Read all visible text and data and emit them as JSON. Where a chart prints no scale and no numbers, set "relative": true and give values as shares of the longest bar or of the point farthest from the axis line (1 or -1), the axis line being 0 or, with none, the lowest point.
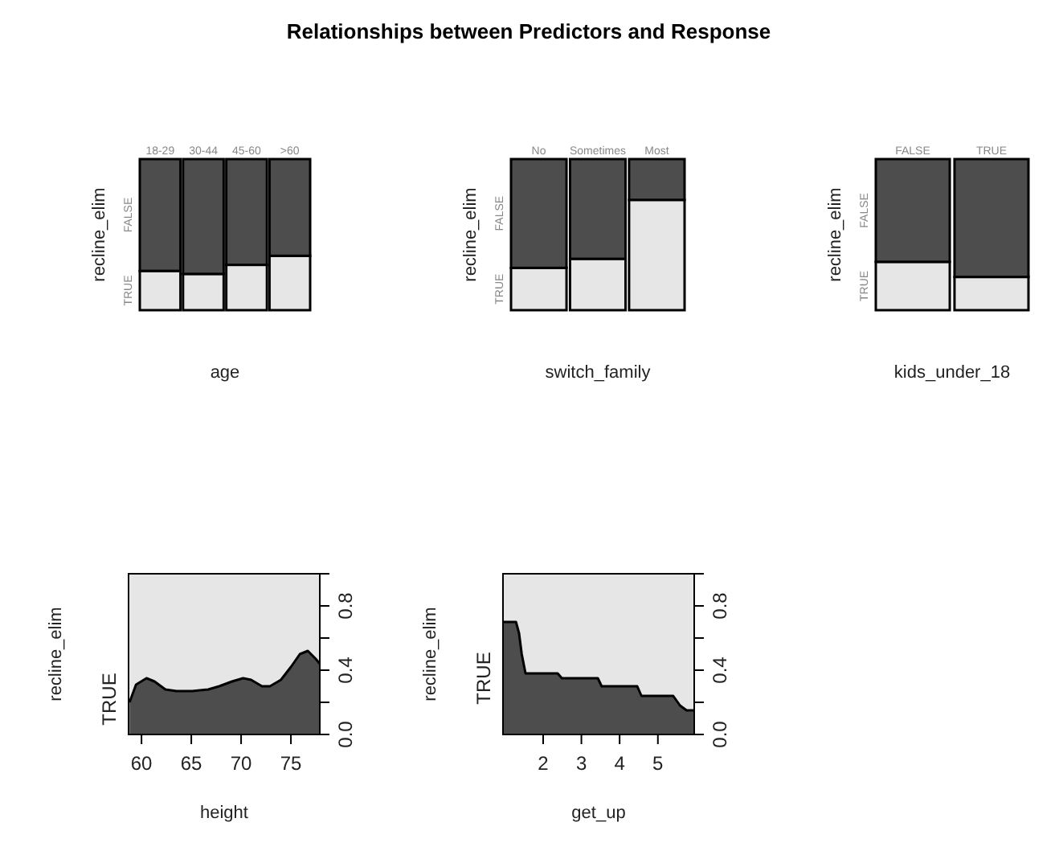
{
  "chart_data": [
    {
      "type": "bar",
      "xlabel": "age",
      "ylabel": "recline_elim",
      "categories": [
        "18-29",
        "30-44",
        "45-60",
        ">60"
      ],
      "stacked": true,
      "relative": true,
      "series": [
        {
          "name": "TRUE",
          "color": "#e6e6e6",
          "values": [
            0.26,
            0.24,
            0.3,
            0.36
          ]
        },
        {
          "name": "FALSE",
          "color": "#4d4d4d",
          "values": [
            0.74,
            0.76,
            0.7,
            0.64
          ]
        }
      ]
    },
    {
      "type": "bar",
      "title": "Relationships between Predictors and Response",
      "xlabel": "switch_family",
      "ylabel": "recline_elim",
      "categories": [
        "No",
        "Sometimes",
        "Most"
      ],
      "stacked": true,
      "relative": true,
      "series": [
        {
          "name": "TRUE",
          "color": "#e6e6e6",
          "values": [
            0.28,
            0.34,
            0.73
          ]
        },
        {
          "name": "FALSE",
          "color": "#4d4d4d",
          "values": [
            0.72,
            0.66,
            0.27
          ]
        }
      ]
    },
    {
      "type": "bar",
      "xlabel": "kids_under_18",
      "ylabel": "recline_elim",
      "categories": [
        "FALSE",
        "TRUE"
      ],
      "stacked": true,
      "relative": true,
      "series": [
        {
          "name": "TRUE",
          "color": "#e6e6e6",
          "values": [
            0.32,
            0.22
          ]
        },
        {
          "name": "FALSE",
          "color": "#4d4d4d",
          "values": [
            0.68,
            0.78
          ]
        }
      ]
    },
    {
      "type": "area",
      "xlabel": "height",
      "ylabel": "recline_elim",
      "stacked": true,
      "xlim": [
        58.7,
        77.9
      ],
      "xticks": [
        60,
        65,
        70,
        75
      ],
      "ylim": [
        0,
        1
      ],
      "yticks": [
        {
          "value": 0,
          "label": "0.0"
        },
        {
          "value": 0.2,
          "label": null
        },
        {
          "value": 0.4,
          "label": "0.4"
        },
        {
          "value": 0.6,
          "label": null
        },
        {
          "value": 0.8,
          "label": "0.8"
        },
        {
          "value": 1,
          "label": null
        }
      ],
      "x": [
        58.8,
        59.45,
        60.5,
        61.3,
        62.4,
        63.5,
        65.1,
        66.7,
        67.8,
        69.1,
        70.2,
        71.0,
        72.1,
        72.9,
        74.0,
        75.0,
        75.9,
        76.7,
        77.5,
        77.9
      ],
      "series": [
        {
          "name": "TRUE",
          "color": "#4d4d4d",
          "values": [
            0.2,
            0.31,
            0.35,
            0.33,
            0.28,
            0.27,
            0.27,
            0.28,
            0.3,
            0.33,
            0.35,
            0.34,
            0.3,
            0.3,
            0.34,
            0.42,
            0.5,
            0.52,
            0.47,
            0.44
          ]
        },
        {
          "color": "#e6e6e6",
          "values": [
            0.8,
            0.69,
            0.65,
            0.67,
            0.72,
            0.73,
            0.73,
            0.72,
            0.7,
            0.67,
            0.65,
            0.66,
            0.7,
            0.7,
            0.66,
            0.58,
            0.5,
            0.48,
            0.53,
            0.56
          ]
        }
      ]
    },
    {
      "type": "area",
      "xlabel": "get_up",
      "ylabel": "recline_elim",
      "stacked": true,
      "xlim": [
        0.95,
        5.95
      ],
      "xticks": [
        2,
        3,
        4,
        5
      ],
      "ylim": [
        0,
        1
      ],
      "yticks": [
        {
          "value": 0,
          "label": "0.0"
        },
        {
          "value": 0.2,
          "label": null
        },
        {
          "value": 0.4,
          "label": "0.4"
        },
        {
          "value": 0.6,
          "label": null
        },
        {
          "value": 0.8,
          "label": "0.8"
        },
        {
          "value": 1,
          "label": null
        }
      ],
      "x": [
        0.95,
        1.29,
        1.37,
        1.44,
        1.54,
        2.38,
        2.49,
        3.43,
        3.53,
        4.46,
        4.57,
        5.4,
        5.58,
        5.75,
        5.95
      ],
      "series": [
        {
          "name": "TRUE",
          "color": "#4d4d4d",
          "values": [
            0.7,
            0.7,
            0.63,
            0.5,
            0.38,
            0.38,
            0.35,
            0.35,
            0.3,
            0.3,
            0.24,
            0.24,
            0.18,
            0.15,
            0.15
          ]
        },
        {
          "color": "#e6e6e6",
          "values": [
            0.3,
            0.3,
            0.37,
            0.5,
            0.62,
            0.62,
            0.65,
            0.65,
            0.7,
            0.7,
            0.76,
            0.76,
            0.82,
            0.85,
            0.85
          ]
        }
      ]
    }
  ]
}
